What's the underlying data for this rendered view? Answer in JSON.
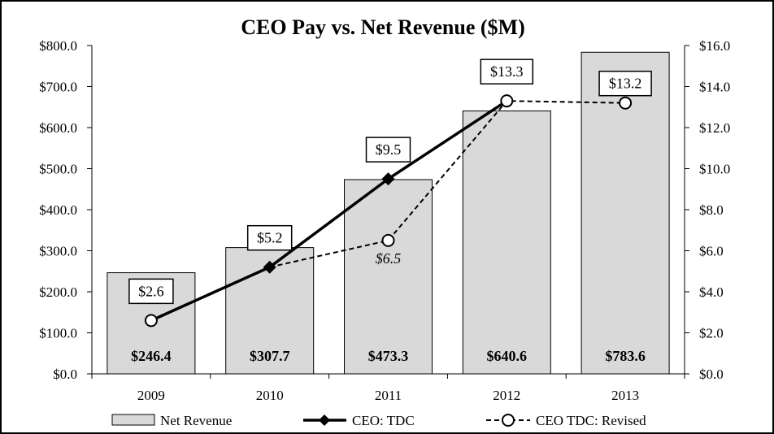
{
  "chart_data": {
    "type": "bar",
    "title": "CEO Pay vs. Net Revenue ($M)",
    "categories": [
      "2009",
      "2010",
      "2011",
      "2012",
      "2013"
    ],
    "y_left": {
      "range": [
        0,
        800
      ],
      "ticks": [
        "$0.0",
        "$100.0",
        "$200.0",
        "$300.0",
        "$400.0",
        "$500.0",
        "$600.0",
        "$700.0",
        "$800.0"
      ]
    },
    "y_right": {
      "range": [
        0,
        16
      ],
      "ticks": [
        "$0.0",
        "$2.0",
        "$4.0",
        "$6.0",
        "$8.0",
        "$10.0",
        "$12.0",
        "$14.0",
        "$16.0"
      ]
    },
    "series": [
      {
        "name": "Net Revenue",
        "type": "bar",
        "axis": "left",
        "values": [
          246.4,
          307.7,
          473.3,
          640.6,
          783.6
        ],
        "labels": [
          "$246.4",
          "$307.7",
          "$473.3",
          "$640.6",
          "$783.6"
        ]
      },
      {
        "name": "CEO: TDC",
        "type": "line",
        "axis": "right",
        "values": [
          2.6,
          5.2,
          9.5,
          13.3,
          null
        ],
        "labels": [
          "$2.6",
          "$5.2",
          "$9.5",
          "$13.3",
          ""
        ]
      },
      {
        "name": "CEO TDC: Revised",
        "type": "line",
        "style": "dashed",
        "axis": "right",
        "values": [
          2.6,
          5.2,
          6.5,
          13.3,
          13.2
        ],
        "labels": [
          "",
          "",
          "$6.5",
          "",
          "$13.2"
        ]
      }
    ],
    "legend": {
      "position": "bottom",
      "entries": [
        "Net Revenue",
        "CEO: TDC",
        "CEO TDC: Revised"
      ]
    },
    "grid": false,
    "colors": {
      "bar_fill": "#d9d9d9",
      "bar_stroke": "#000000",
      "line": "#000000",
      "border": "#000000"
    }
  }
}
